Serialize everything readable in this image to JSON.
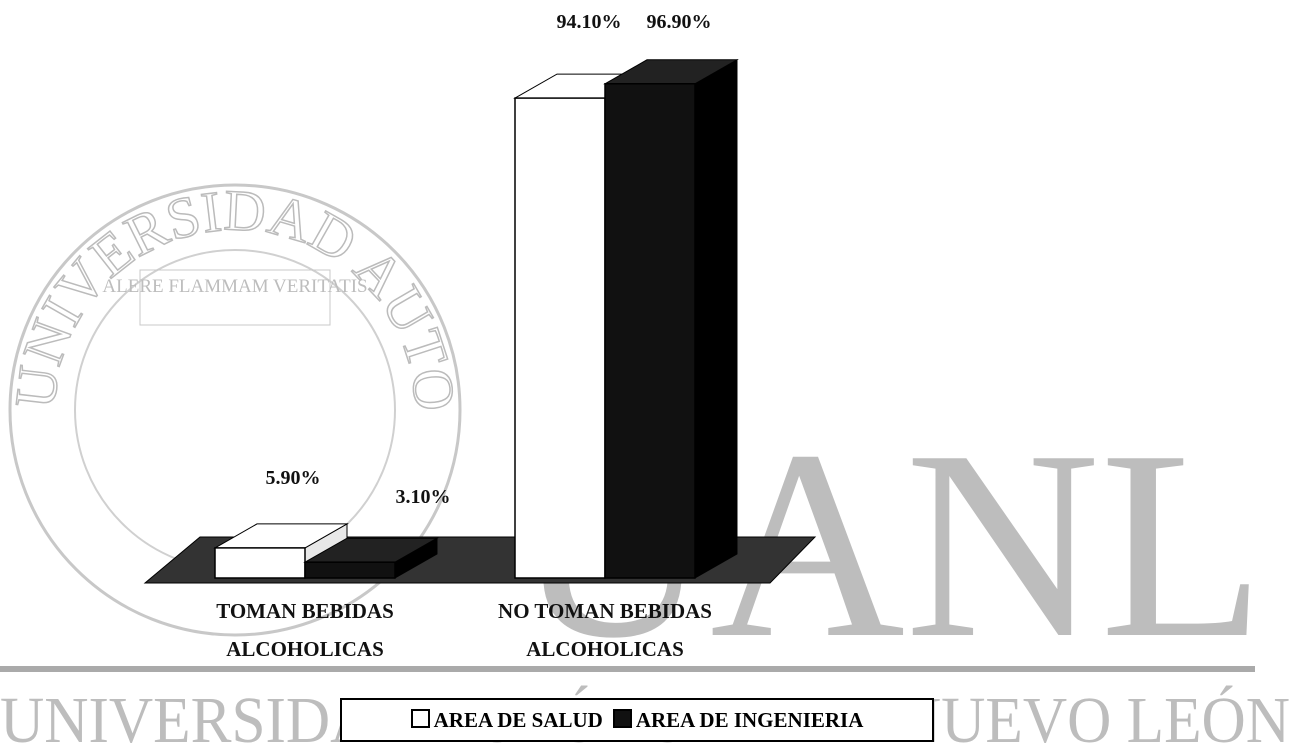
{
  "chart_data": {
    "type": "bar3d",
    "categories": [
      "TOMAN BEBIDAS ALCOHOLICAS",
      "NO TOMAN BEBIDAS ALCOHOLICAS"
    ],
    "series": [
      {
        "name": "AREA DE SALUD",
        "color": "#ffffff",
        "values": [
          5.9,
          94.1
        ],
        "value_labels": [
          "5.90%",
          "94.10%"
        ]
      },
      {
        "name": "AREA DE INGENIERIA",
        "color": "#111111",
        "values": [
          3.1,
          96.9
        ],
        "value_labels": [
          "3.10%",
          "96.90%"
        ]
      }
    ],
    "legend": "bottom"
  },
  "watermark": {
    "seal_text": "UNIVERSIDAD AUTONOMA DE NUEVO LEON",
    "motto": "ALERE FLAMMAM VERITATIS",
    "logo": "UANL",
    "footer": "UNIVERSIDAD AUTÓNOMA DE NUEVO LEÓN"
  }
}
